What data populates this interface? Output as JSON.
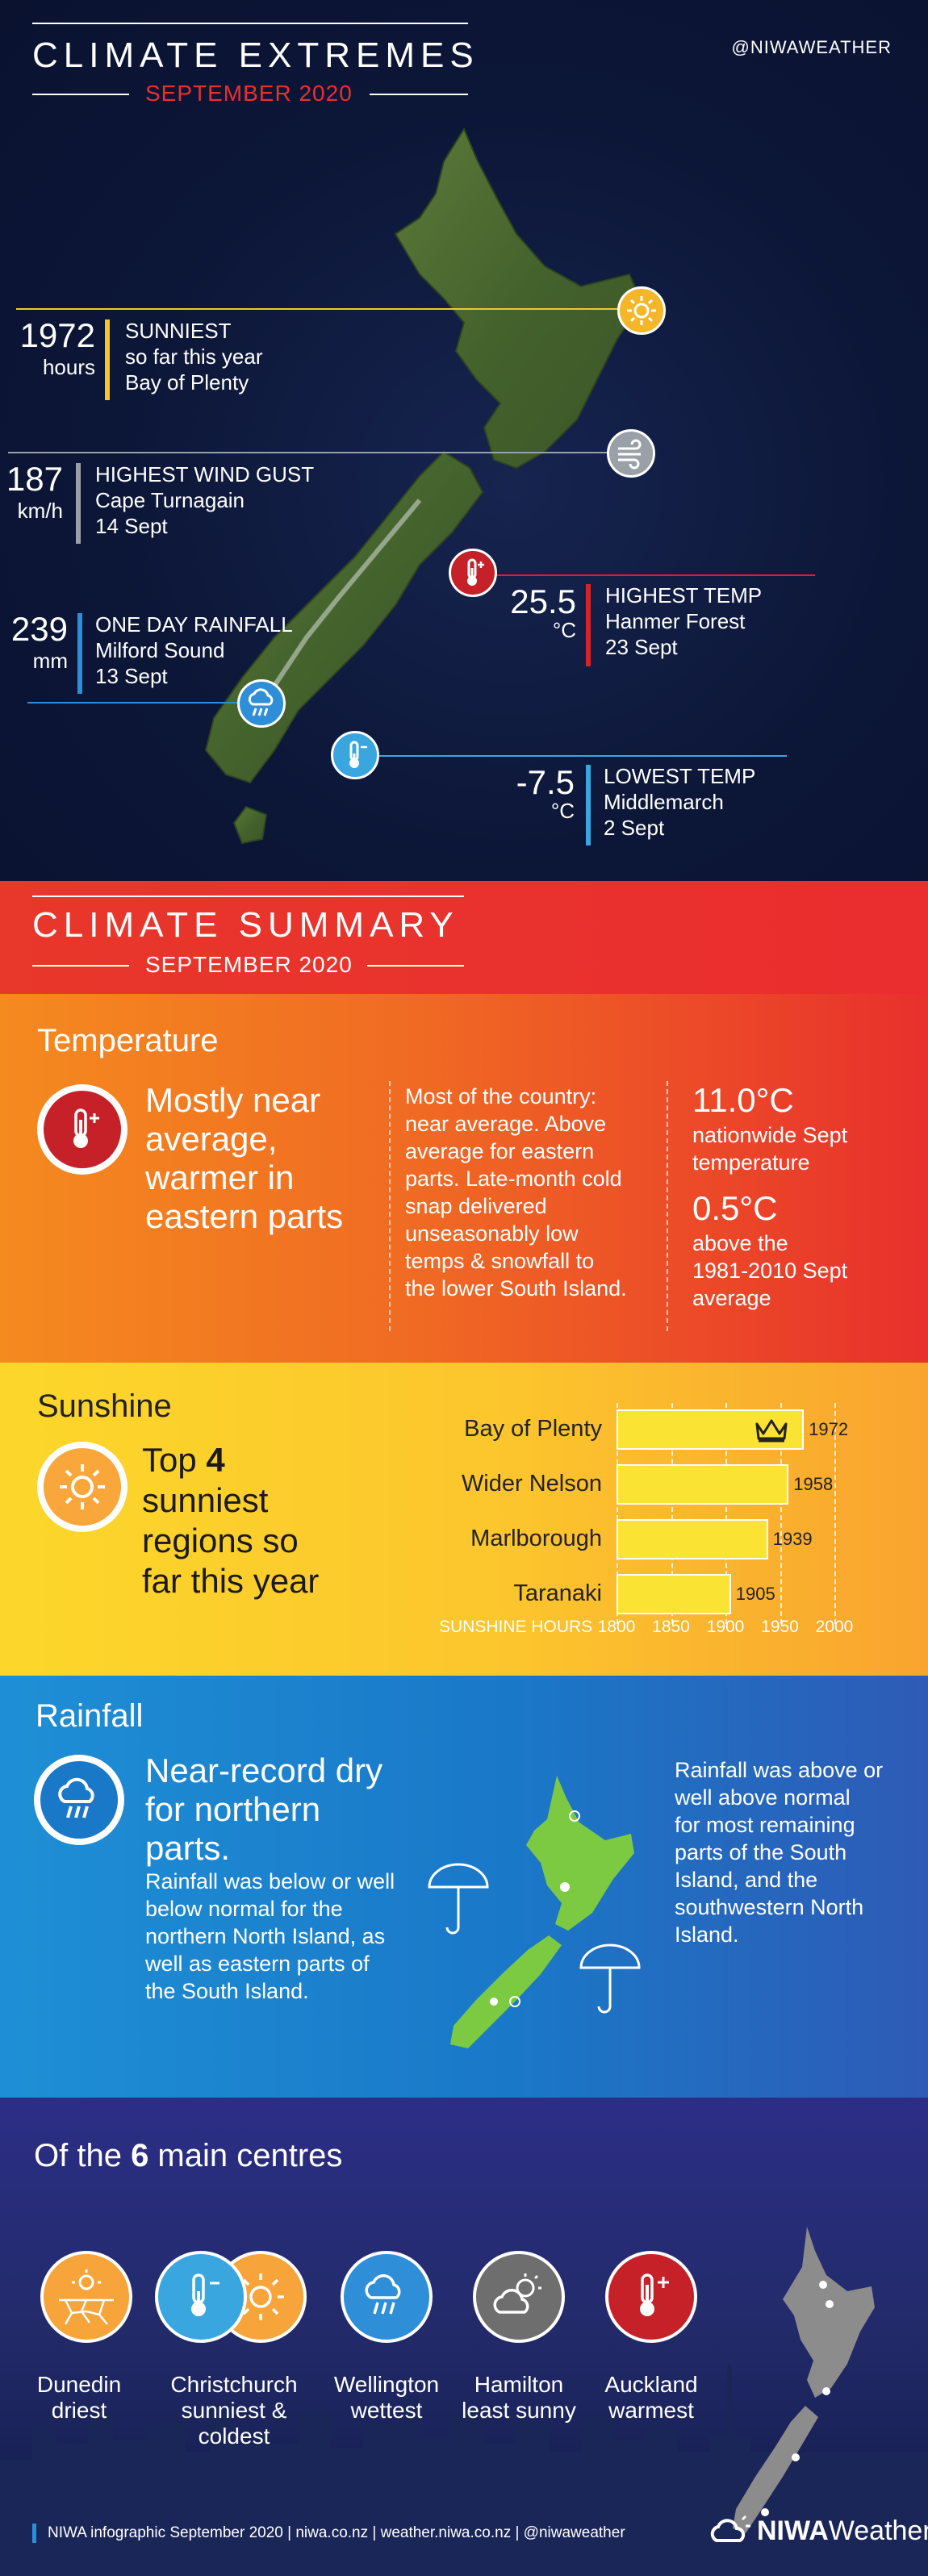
{
  "extremes": {
    "title": "CLIMATE EXTREMES",
    "subtitle": "SEPTEMBER 2020",
    "handle": "@NIWAWEATHER",
    "sunniest": {
      "value": "1972",
      "unit": "hours",
      "lines": [
        "SUNNIEST",
        "so far this year",
        "Bay of Plenty"
      ],
      "color": "#f5c52a"
    },
    "wind": {
      "value": "187",
      "unit": "km/h",
      "lines": [
        "HIGHEST WIND GUST",
        "Cape Turnagain",
        "14 Sept"
      ],
      "color": "#9aa0a8"
    },
    "rain": {
      "value": "239",
      "unit": "mm",
      "lines": [
        "ONE DAY RAINFALL",
        "Milford Sound",
        "13 Sept"
      ],
      "color": "#2e8fd8"
    },
    "hightemp": {
      "value": "25.5",
      "unit": "°C",
      "lines": [
        "HIGHEST TEMP",
        "Hanmer Forest",
        "23 Sept"
      ],
      "color": "#d6232b"
    },
    "lowtemp": {
      "value": "-7.5",
      "unit": "°C",
      "lines": [
        "LOWEST TEMP",
        "Middlemarch",
        "2 Sept"
      ],
      "color": "#39a6e0"
    }
  },
  "summary": {
    "title": "CLIMATE SUMMARY",
    "subtitle": "SEPTEMBER 2020"
  },
  "temperature": {
    "title": "Temperature",
    "headline": [
      "Mostly near",
      "average,",
      "warmer in",
      "eastern parts"
    ],
    "body": [
      "Most of the country:",
      "near average. Above",
      "average for eastern",
      "parts. Late-month cold",
      "snap delivered",
      "unseasonably low",
      "temps & snowfall to",
      "the lower South Island."
    ],
    "stat1_value": "11.0°C",
    "stat1_lines": [
      "nationwide Sept",
      "temperature"
    ],
    "stat2_value": "0.5°C",
    "stat2_lines": [
      "above the",
      "1981-2010 Sept",
      "average"
    ]
  },
  "sunshine": {
    "title": "Sunshine",
    "headline_pre": "Top ",
    "headline_num": "4",
    "headline_rest": [
      "sunniest",
      "regions so",
      "far this year"
    ]
  },
  "chart_data": {
    "type": "bar",
    "orientation": "horizontal",
    "categories": [
      "Bay of Plenty",
      "Wider Nelson",
      "Marlborough",
      "Taranaki"
    ],
    "values": [
      1972,
      1958,
      1939,
      1905
    ],
    "xlabel": "SUNSHINE HOURS",
    "xlim": [
      1800,
      2000
    ],
    "xticks": [
      1800,
      1850,
      1900,
      1950,
      2000
    ],
    "grid": true
  },
  "rainfall": {
    "title": "Rainfall",
    "headline": [
      "Near-record dry",
      "for northern",
      "parts."
    ],
    "body": [
      "Rainfall was below or well",
      "below normal for the",
      "northern North Island, as",
      "well as eastern parts of",
      "the South Island."
    ],
    "right": [
      "Rainfall was above or",
      "well above normal",
      "for most remaining",
      "parts of the South",
      "Island, and the",
      "southwestern North",
      "Island."
    ]
  },
  "centres": {
    "title_pre": "Of the ",
    "title_num": "6",
    "title_post": " main centres",
    "items": [
      {
        "lines": [
          "Dunedin",
          "driest"
        ]
      },
      {
        "lines": [
          "Christchurch",
          "sunniest &",
          "coldest"
        ]
      },
      {
        "lines": [
          "Wellington",
          "wettest"
        ]
      },
      {
        "lines": [
          "Hamilton",
          "least sunny"
        ]
      },
      {
        "lines": [
          "Auckland",
          "warmest"
        ]
      }
    ]
  },
  "footer": {
    "text": "NIWA infographic September 2020 | niwa.co.nz | weather.niwa.co.nz | @niwaweather",
    "logo_bold": "NIWA",
    "logo_rest": "Weather"
  }
}
